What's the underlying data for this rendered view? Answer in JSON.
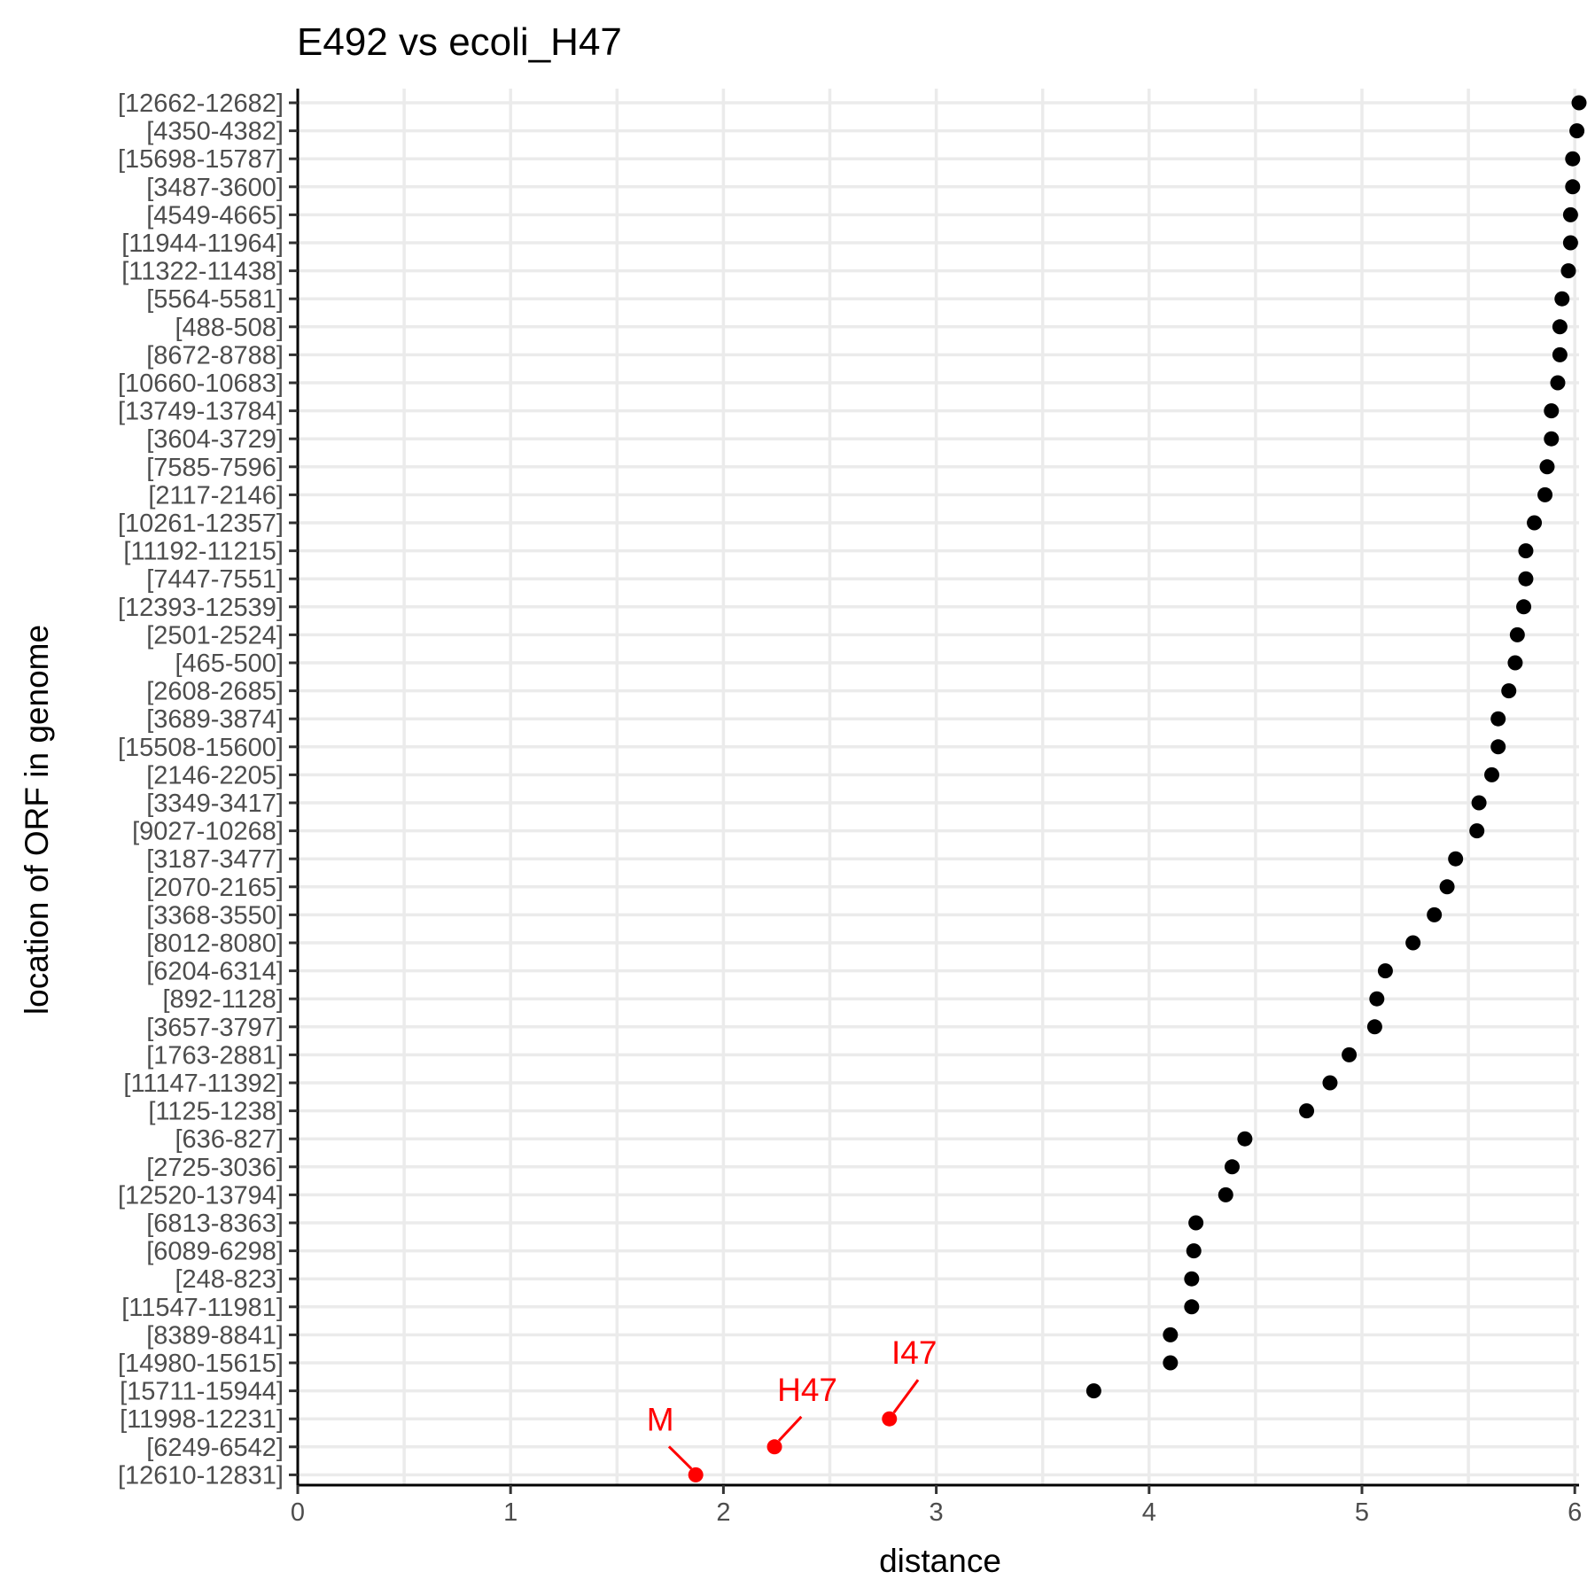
{
  "chart_data": {
    "type": "scatter",
    "title": "E492 vs ecoli_H47",
    "xlabel": "distance",
    "ylabel": "location of ORF in genome",
    "xlim": [
      0,
      6.02
    ],
    "x_ticks": [
      0,
      1,
      2,
      3,
      4,
      5,
      6
    ],
    "grid": true,
    "point_color": "#000000",
    "highlight_color": "#ff0000",
    "categories": [
      "[12662-12682]",
      "[4350-4382]",
      "[15698-15787]",
      "[3487-3600]",
      "[4549-4665]",
      "[11944-11964]",
      "[11322-11438]",
      "[5564-5581]",
      "[488-508]",
      "[8672-8788]",
      "[10660-10683]",
      "[13749-13784]",
      "[3604-3729]",
      "[7585-7596]",
      "[2117-2146]",
      "[10261-12357]",
      "[11192-11215]",
      "[7447-7551]",
      "[12393-12539]",
      "[2501-2524]",
      "[465-500]",
      "[2608-2685]",
      "[3689-3874]",
      "[15508-15600]",
      "[2146-2205]",
      "[3349-3417]",
      "[9027-10268]",
      "[3187-3477]",
      "[2070-2165]",
      "[3368-3550]",
      "[8012-8080]",
      "[6204-6314]",
      "[892-1128]",
      "[3657-3797]",
      "[1763-2881]",
      "[11147-11392]",
      "[1125-1238]",
      "[636-827]",
      "[2725-3036]",
      "[12520-13794]",
      "[6813-8363]",
      "[6089-6298]",
      "[248-823]",
      "[11547-11981]",
      "[8389-8841]",
      "[14980-15615]",
      "[15711-15944]",
      "[11998-12231]",
      "[6249-6542]",
      "[12610-12831]"
    ],
    "values": [
      6.02,
      6.01,
      5.99,
      5.99,
      5.98,
      5.98,
      5.97,
      5.94,
      5.93,
      5.93,
      5.92,
      5.89,
      5.89,
      5.87,
      5.86,
      5.81,
      5.77,
      5.77,
      5.76,
      5.73,
      5.72,
      5.69,
      5.64,
      5.64,
      5.61,
      5.55,
      5.54,
      5.44,
      5.4,
      5.34,
      5.24,
      5.11,
      5.07,
      5.06,
      4.94,
      4.85,
      4.74,
      4.45,
      4.39,
      4.36,
      4.22,
      4.21,
      4.2,
      4.2,
      4.1,
      4.1,
      3.74,
      2.78,
      2.24,
      1.87
    ],
    "annotations": [
      {
        "label": "I47",
        "category": "[11998-12231]"
      },
      {
        "label": "H47",
        "category": "[6249-6542]"
      },
      {
        "label": "M",
        "category": "[12610-12831]"
      }
    ]
  }
}
